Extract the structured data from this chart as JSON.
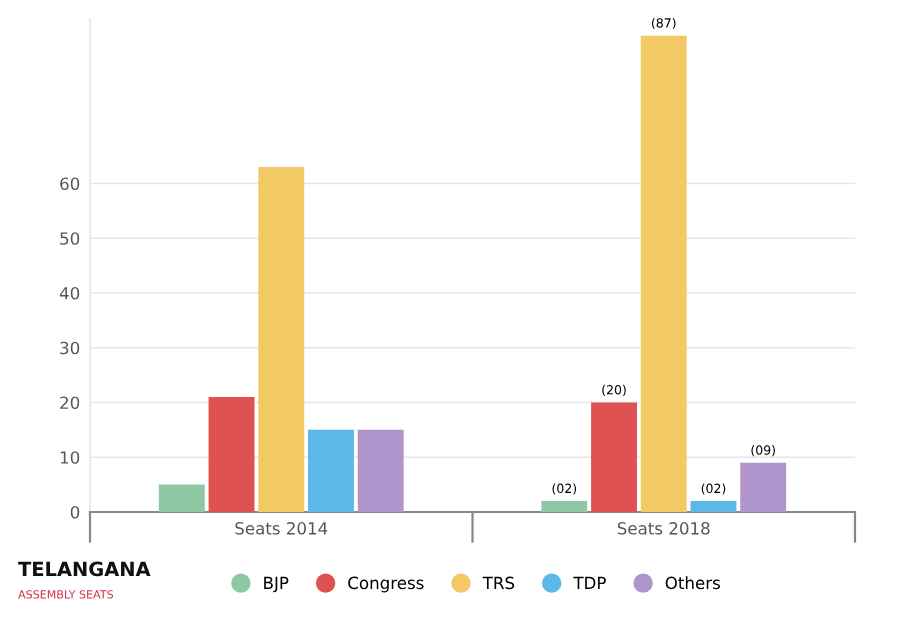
{
  "chart_data": {
    "type": "bar",
    "categories": [
      "Seats 2014",
      "Seats 2018"
    ],
    "series": [
      {
        "name": "BJP",
        "color": "#8fc9a3",
        "values": [
          5,
          2
        ],
        "value_labels": [
          null,
          "(02)"
        ]
      },
      {
        "name": "Congress",
        "color": "#e05252",
        "values": [
          21,
          20
        ],
        "value_labels": [
          null,
          "(20)"
        ]
      },
      {
        "name": "TRS",
        "color": "#f2c964",
        "values": [
          63,
          87
        ],
        "value_labels": [
          null,
          "(87)"
        ]
      },
      {
        "name": "TDP",
        "color": "#5cb8e6",
        "values": [
          15,
          2
        ],
        "value_labels": [
          null,
          "(02)"
        ]
      },
      {
        "name": "Others",
        "color": "#b094cc",
        "values": [
          15,
          9
        ],
        "value_labels": [
          null,
          "(09)"
        ]
      }
    ],
    "ylim": [
      0,
      90
    ],
    "yticks": [
      0,
      10,
      20,
      30,
      40,
      50,
      60
    ],
    "grid": "y",
    "legend": "bottom",
    "annotations": [
      "TELANGANA",
      "ASSEMBLY SEATS"
    ]
  }
}
